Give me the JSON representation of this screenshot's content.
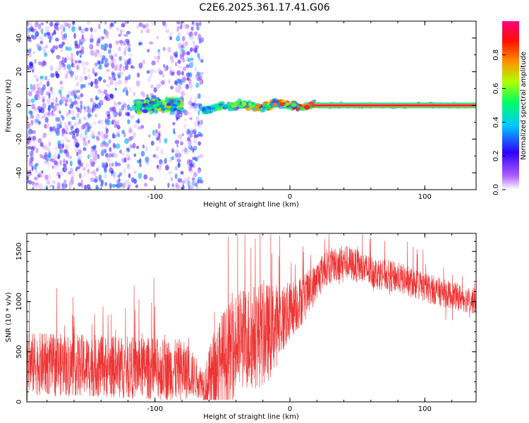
{
  "title": "C2E6.2025.361.17.41.G06",
  "chart_data": [
    {
      "type": "heatmap",
      "xlabel": "Height of straight line (km)",
      "ylabel": "Frequency (Hz)",
      "xlim": [
        -195,
        138
      ],
      "ylim": [
        -50,
        50
      ],
      "x_ticks": [
        -100,
        0,
        100
      ],
      "y_ticks": [
        -40,
        -20,
        0,
        20,
        40
      ],
      "colorbar": {
        "label": "Normalized spectral amplitude",
        "range": [
          0,
          1
        ],
        "ticks": [
          0.0,
          0.2,
          0.4,
          0.6,
          0.8
        ],
        "colors": [
          "#ffffff",
          "#9b30ff",
          "#3000ff",
          "#00c8ff",
          "#00ff60",
          "#b0ff00",
          "#ff8000",
          "#ff0000",
          "#ff0080"
        ]
      },
      "regions": [
        {
          "x_range": [
            -195,
            -65
          ],
          "freq_spread": 50,
          "max_amplitude": 0.35,
          "pattern": "scattered noise"
        },
        {
          "x_range": [
            -115,
            -80
          ],
          "freq_spread": 6,
          "max_amplitude": 0.55,
          "pattern": "clustered signal"
        },
        {
          "x_range": [
            -65,
            18
          ],
          "freq_spread": 4,
          "max_amplitude": 0.95,
          "pattern": "wobbling narrow line"
        },
        {
          "x_range": [
            18,
            138
          ],
          "freq_spread": 1,
          "max_amplitude": 1.0,
          "pattern": "steady narrow line at 0 Hz"
        }
      ]
    },
    {
      "type": "line",
      "xlabel": "Height of straight line (km)",
      "ylabel": "SNR (10 * v/v)",
      "xlim": [
        -195,
        138
      ],
      "ylim": [
        0,
        1680
      ],
      "x_ticks": [
        -100,
        0,
        100
      ],
      "y_ticks": [
        0,
        500,
        1000,
        1500
      ],
      "series_color": "#ee3333",
      "trend": [
        {
          "x": -195,
          "y": 380
        },
        {
          "x": -150,
          "y": 360
        },
        {
          "x": -100,
          "y": 330
        },
        {
          "x": -75,
          "y": 300
        },
        {
          "x": -62,
          "y": 160
        },
        {
          "x": -50,
          "y": 420
        },
        {
          "x": -35,
          "y": 620
        },
        {
          "x": -15,
          "y": 700
        },
        {
          "x": 0,
          "y": 900
        },
        {
          "x": 15,
          "y": 1100
        },
        {
          "x": 25,
          "y": 1330
        },
        {
          "x": 40,
          "y": 1400
        },
        {
          "x": 60,
          "y": 1300
        },
        {
          "x": 80,
          "y": 1240
        },
        {
          "x": 100,
          "y": 1140
        },
        {
          "x": 120,
          "y": 1060
        },
        {
          "x": 138,
          "y": 1000
        }
      ],
      "noise": [
        {
          "x": -195,
          "amp": 520
        },
        {
          "x": -80,
          "amp": 520
        },
        {
          "x": -65,
          "amp": 260
        },
        {
          "x": -55,
          "amp": 800
        },
        {
          "x": -20,
          "amp": 900
        },
        {
          "x": 0,
          "amp": 500
        },
        {
          "x": 20,
          "amp": 320
        },
        {
          "x": 50,
          "amp": 280
        },
        {
          "x": 138,
          "amp": 220
        }
      ]
    }
  ]
}
